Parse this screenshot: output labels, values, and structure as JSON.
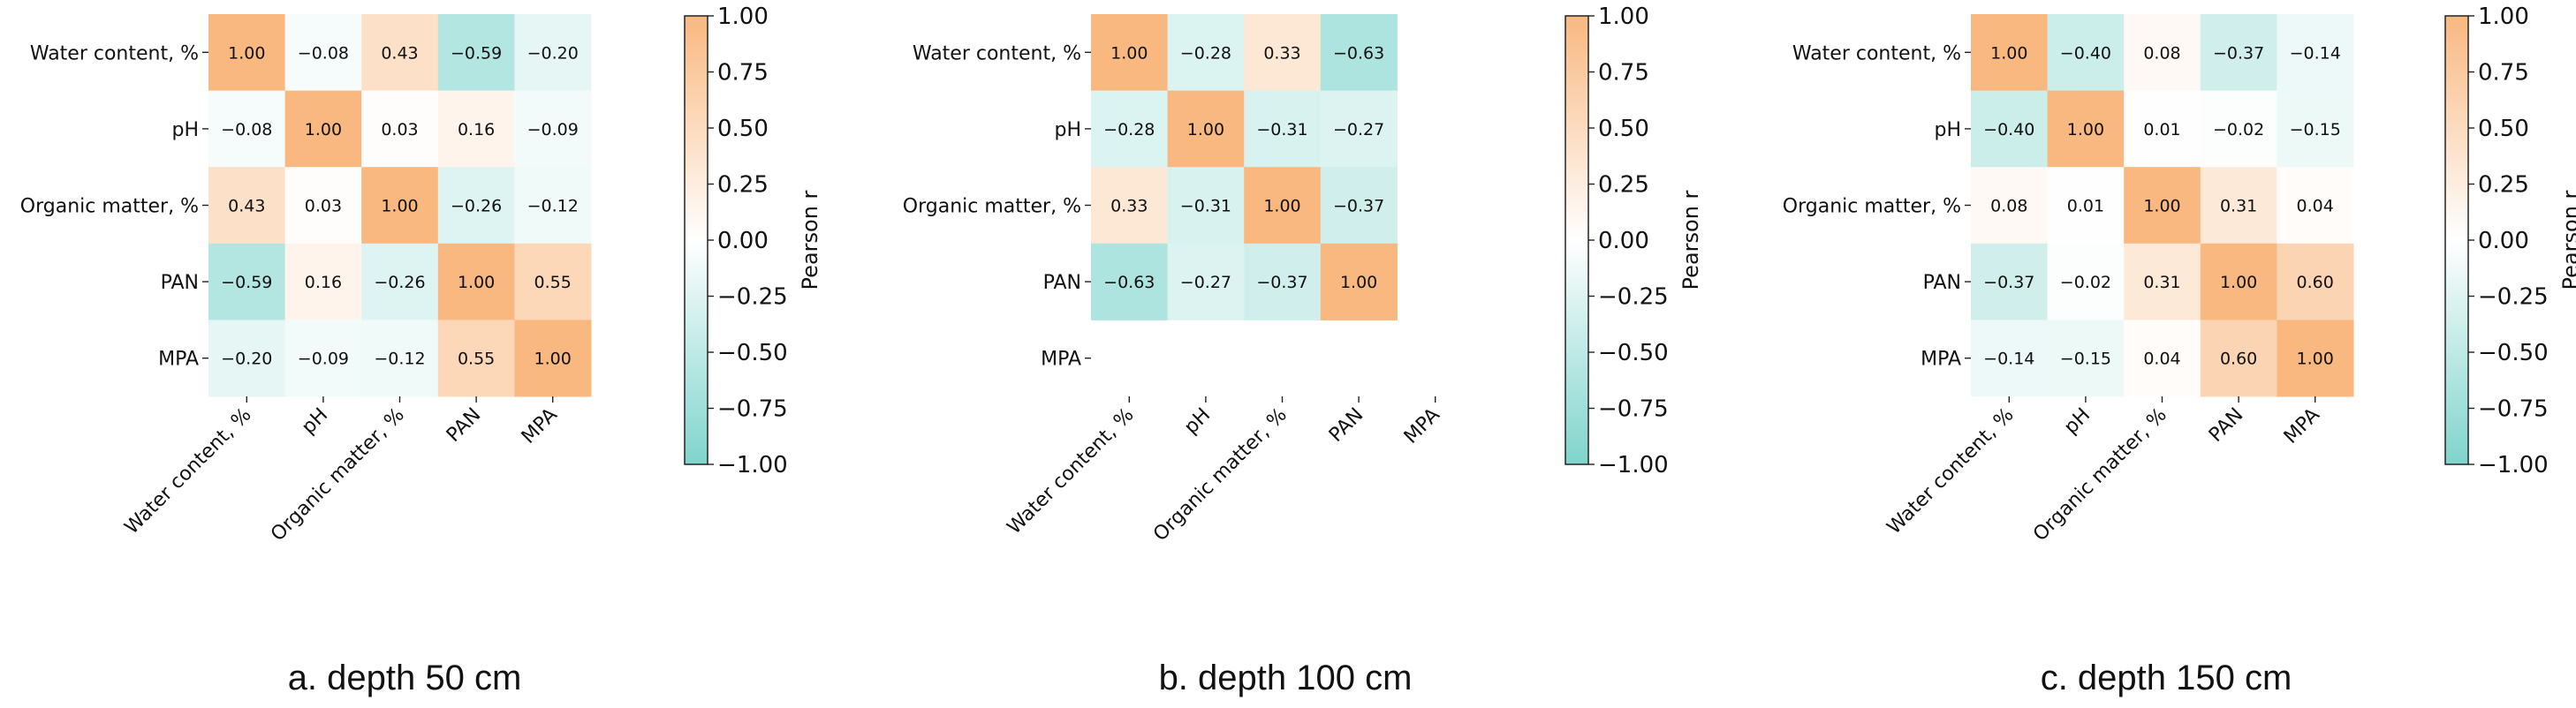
{
  "chart_data": [
    {
      "type": "heatmap",
      "caption": "a. depth 50 cm",
      "row_labels": [
        "Water content, %",
        "pH",
        "Organic matter, %",
        "PAN",
        "MPA"
      ],
      "col_labels": [
        "Water content, %",
        "pH",
        "Organic matter, %",
        "PAN",
        "MPA"
      ],
      "values": [
        [
          1.0,
          -0.08,
          0.43,
          -0.59,
          -0.2
        ],
        [
          -0.08,
          1.0,
          0.03,
          0.16,
          -0.09
        ],
        [
          0.43,
          0.03,
          1.0,
          -0.26,
          -0.12
        ],
        [
          -0.59,
          0.16,
          -0.26,
          1.0,
          0.55
        ],
        [
          -0.2,
          -0.09,
          -0.12,
          0.55,
          1.0
        ]
      ],
      "colorbar": {
        "label": "Pearson r",
        "ticks": [
          "1.00",
          "0.75",
          "0.50",
          "0.25",
          "0.00",
          "−0.25",
          "−0.50",
          "−0.75",
          "−1.00"
        ],
        "range": [
          -1,
          1
        ]
      }
    },
    {
      "type": "heatmap",
      "caption": "b. depth 100 cm",
      "row_labels": [
        "Water content, %",
        "pH",
        "Organic matter, %",
        "PAN",
        "MPA"
      ],
      "col_labels": [
        "Water content, %",
        "pH",
        "Organic matter, %",
        "PAN",
        "MPA"
      ],
      "values": [
        [
          1.0,
          -0.28,
          0.33,
          -0.63,
          null
        ],
        [
          -0.28,
          1.0,
          -0.31,
          -0.27,
          null
        ],
        [
          0.33,
          -0.31,
          1.0,
          -0.37,
          null
        ],
        [
          -0.63,
          -0.27,
          -0.37,
          1.0,
          null
        ],
        [
          null,
          null,
          null,
          null,
          null
        ]
      ],
      "colorbar": {
        "label": "Pearson r",
        "ticks": [
          "1.00",
          "0.75",
          "0.50",
          "0.25",
          "0.00",
          "−0.25",
          "−0.50",
          "−0.75",
          "−1.00"
        ],
        "range": [
          -1,
          1
        ]
      }
    },
    {
      "type": "heatmap",
      "caption": "c. depth 150 cm",
      "row_labels": [
        "Water content, %",
        "pH",
        "Organic matter, %",
        "PAN",
        "MPA"
      ],
      "col_labels": [
        "Water content, %",
        "pH",
        "Organic matter, %",
        "PAN",
        "MPA"
      ],
      "values": [
        [
          1.0,
          -0.4,
          0.08,
          -0.37,
          -0.14
        ],
        [
          -0.4,
          1.0,
          0.01,
          -0.02,
          -0.15
        ],
        [
          0.08,
          0.01,
          1.0,
          0.31,
          0.04
        ],
        [
          -0.37,
          -0.02,
          0.31,
          1.0,
          0.6
        ],
        [
          -0.14,
          -0.15,
          0.04,
          0.6,
          1.0
        ]
      ],
      "colorbar": {
        "label": "Pearson r",
        "ticks": [
          "1.00",
          "0.75",
          "0.50",
          "0.25",
          "0.00",
          "−0.25",
          "−0.50",
          "−0.75",
          "−1.00"
        ],
        "range": [
          -1,
          1
        ]
      }
    }
  ],
  "colors": {
    "positive": "#f9b880",
    "neutral": "#ffffff",
    "negative": "#7fd4cc"
  }
}
